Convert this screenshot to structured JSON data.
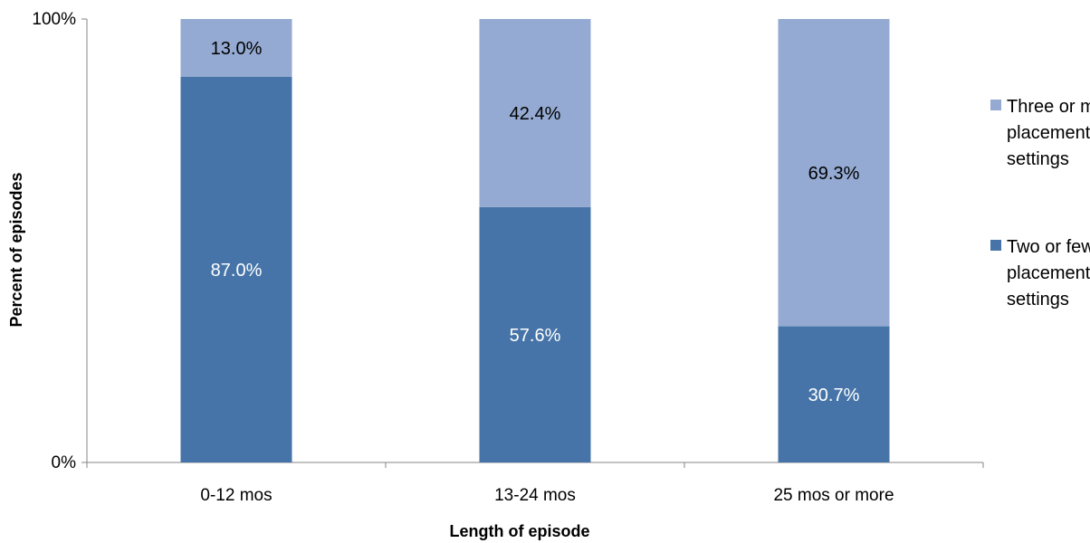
{
  "chart_data": {
    "type": "bar",
    "stacked": true,
    "percent_stacked": true,
    "title": "",
    "xlabel": "Length of episode",
    "ylabel": "Percent of episodes",
    "ylim": [
      0,
      100
    ],
    "y_ticks": [
      "0%",
      "100%"
    ],
    "grid": false,
    "legend_position": "right",
    "categories": [
      "0-12 mos",
      "13-24 mos",
      "25 mos or more"
    ],
    "series": [
      {
        "name": "Two or fewer placement settings",
        "legend_lines": [
          "Two or fewer",
          "placement",
          "settings"
        ],
        "values": [
          87.0,
          57.6,
          30.7
        ],
        "labels": [
          "87.0%",
          "57.6%",
          "30.7%"
        ],
        "color": "#4674A8",
        "label_color": "#FFFFFF"
      },
      {
        "name": "Three or more placement settings",
        "legend_lines": [
          "Three or more",
          "placement",
          "settings"
        ],
        "values": [
          13.0,
          42.4,
          69.3
        ],
        "labels": [
          "13.0%",
          "42.4%",
          "69.3%"
        ],
        "color": "#94AAD2",
        "label_color": "#000000"
      }
    ]
  }
}
